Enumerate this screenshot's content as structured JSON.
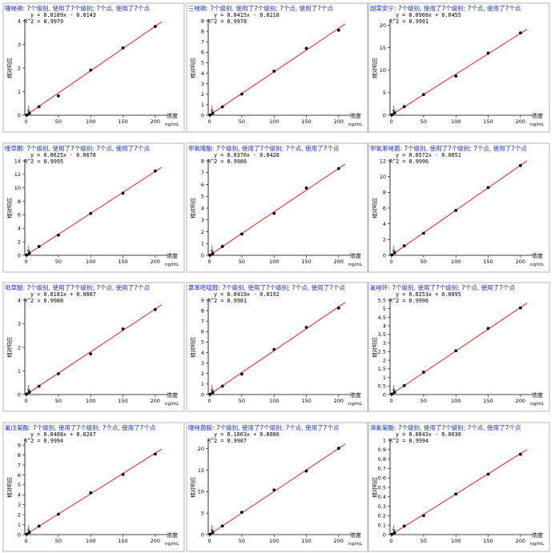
{
  "common": {
    "y_label": "相对响应",
    "x_label": "浓度",
    "x_unit": "ng/mL",
    "x_ticks": [
      0,
      50,
      100,
      150,
      200
    ],
    "point_x": [
      1,
      5,
      20,
      50,
      100,
      150,
      200
    ],
    "line_color": "#e8332f",
    "title_color": "#1a2fcc"
  },
  "chart_data": [
    {
      "type": "scatter",
      "title": "噻唑磷: 7个级别, 使用了7个级别; 7个点, 使用了7个点",
      "equation": "y = 0.0189x - 0.0143",
      "r2": "R^2 = 0.9979",
      "slope": 0.0189,
      "intercept": -0.0143,
      "ylim": [
        0,
        4
      ],
      "yticks": [
        0,
        1,
        2,
        3,
        4
      ],
      "x": [
        1,
        5,
        20,
        50,
        100,
        150,
        200
      ],
      "y": [
        0.01,
        0.08,
        0.36,
        0.82,
        1.91,
        2.85,
        3.76
      ]
    },
    {
      "type": "scatter",
      "title": "三唑磷: 7个级别, 使用了7个级别; 7个点, 使用了7个点",
      "equation": "y = 0.0415x - 0.0218",
      "r2": "R^2 = 0.9978",
      "slope": 0.0415,
      "intercept": -0.0218,
      "ylim": [
        0,
        9
      ],
      "yticks": [
        0,
        1,
        2,
        3,
        4,
        5,
        6,
        7,
        8,
        9
      ],
      "x": [
        1,
        5,
        20,
        50,
        100,
        150,
        200
      ],
      "y": [
        0.03,
        0.19,
        0.8,
        2.02,
        4.2,
        6.38,
        8.1
      ]
    },
    {
      "type": "scatter",
      "title": "甜菜安宁: 7个级别, 使用了7个级别; 7个点, 使用了7个点",
      "equation": "y = 0.0908x + 0.0455",
      "r2": "R^2 = 0.9991",
      "slope": 0.0908,
      "intercept": 0.0455,
      "ylim": [
        0,
        21
      ],
      "yticks": [
        0,
        5,
        10,
        15,
        20
      ],
      "x": [
        1,
        5,
        20,
        50,
        100,
        150,
        200
      ],
      "y": [
        0.1,
        0.5,
        1.9,
        4.6,
        8.7,
        13.8,
        18.3
      ]
    },
    {
      "type": "scatter",
      "title": "喹草酮: 7个级别, 使用了7个级别; 7个点, 使用了7个点",
      "equation": "y = 0.0625x - 0.0678",
      "r2": "R^2 = 0.9995",
      "slope": 0.0625,
      "intercept": -0.0678,
      "ylim": [
        0,
        14
      ],
      "yticks": [
        0,
        2,
        4,
        6,
        8,
        10,
        12,
        14
      ],
      "x": [
        1,
        5,
        20,
        50,
        100,
        150,
        200
      ],
      "y": [
        0.05,
        0.3,
        1.3,
        3.0,
        6.2,
        9.2,
        12.5
      ]
    },
    {
      "type": "scatter",
      "title": "甲氧隆酯: 7个级别, 使用了7个级别; 7个点, 使用了7个点",
      "equation": "y = 0.0370x - 0.0428",
      "r2": "R^2 = 0.9986",
      "slope": 0.037,
      "intercept": -0.0428,
      "ylim": [
        0,
        8
      ],
      "yticks": [
        0,
        1,
        2,
        3,
        4,
        5,
        6,
        7,
        8
      ],
      "x": [
        1,
        5,
        20,
        50,
        100,
        150,
        200
      ],
      "y": [
        0.01,
        0.15,
        0.75,
        1.8,
        3.55,
        5.7,
        7.35
      ]
    },
    {
      "type": "scatter",
      "title": "甲氧苯唑菌: 7个级别, 使用了7个级别; 7个点, 使用了7个点",
      "equation": "y = 0.0572x - 0.0051",
      "r2": "R^2 = 0.9996",
      "slope": 0.0572,
      "intercept": -0.0051,
      "ylim": [
        0,
        12
      ],
      "yticks": [
        0,
        2,
        4,
        6,
        8,
        10,
        12
      ],
      "x": [
        1,
        5,
        20,
        50,
        100,
        150,
        200
      ],
      "y": [
        0.05,
        0.3,
        1.2,
        2.8,
        5.7,
        8.6,
        11.4
      ]
    },
    {
      "type": "scatter",
      "title": "吡草醚: 7个级别, 使用了7个级别; 7个点, 使用了7个点",
      "equation": "y = 0.0181x + 0.0007",
      "r2": "R^2 = 0.9980",
      "slope": 0.0181,
      "intercept": 0.0007,
      "ylim": [
        0,
        4
      ],
      "yticks": [
        0,
        1,
        2,
        3,
        4
      ],
      "x": [
        1,
        5,
        20,
        50,
        100,
        150,
        200
      ],
      "y": [
        0.02,
        0.1,
        0.35,
        0.88,
        1.72,
        2.78,
        3.6
      ]
    },
    {
      "type": "scatter",
      "title": "氯苯嘧啶醇: 7个级别, 使用了7个级别; 7个点, 使用了7个点",
      "equation": "y = 0.0419x - 0.0192",
      "r2": "R^2 = 0.9981",
      "slope": 0.0419,
      "intercept": -0.0192,
      "ylim": [
        0,
        9
      ],
      "yticks": [
        0,
        1,
        2,
        3,
        4,
        5,
        6,
        7,
        8,
        9
      ],
      "x": [
        1,
        5,
        20,
        50,
        100,
        150,
        200
      ],
      "y": [
        0.03,
        0.2,
        0.8,
        1.95,
        4.3,
        6.4,
        8.25
      ]
    },
    {
      "type": "scatter",
      "title": "氟唑环: 7个级别, 使用了7个级别; 7个点, 使用了7个点",
      "equation": "y = 0.0253x + 0.0095",
      "r2": "R^2 = 0.9996",
      "slope": 0.0253,
      "intercept": 0.0095,
      "ylim": [
        0,
        5.5
      ],
      "yticks": [
        0,
        0.5,
        1,
        1.5,
        2,
        2.5,
        3,
        3.5,
        4,
        4.5,
        5,
        5.5
      ],
      "x": [
        1,
        5,
        20,
        50,
        100,
        150,
        200
      ],
      "y": [
        0.03,
        0.13,
        0.52,
        1.3,
        2.55,
        3.85,
        5.05
      ]
    },
    {
      "type": "scatter",
      "title": "氟戊菊酯: 7个级别, 使用了7个级别; 7个点, 使用了7个点",
      "equation": "y = 0.0408x + 0.0267",
      "r2": "R^2 = 0.9994",
      "slope": 0.0408,
      "intercept": 0.0267,
      "ylim": [
        0,
        9.5
      ],
      "yticks": [
        0,
        1,
        2,
        3,
        4,
        5,
        6,
        7,
        8,
        9
      ],
      "x": [
        1,
        5,
        20,
        50,
        100,
        150,
        200
      ],
      "y": [
        0.05,
        0.22,
        0.85,
        2.05,
        4.2,
        6.05,
        8.1
      ]
    },
    {
      "type": "scatter",
      "title": "噻唑菌胺: 7个级别, 使用了7个级别; 7个点, 使用了7个点",
      "equation": "y = 0.1003x + 0.0086",
      "r2": "R^2 = 0.9987",
      "slope": 0.1003,
      "intercept": 0.0086,
      "ylim": [
        0,
        22
      ],
      "yticks": [
        0,
        5,
        10,
        15,
        20
      ],
      "x": [
        1,
        5,
        20,
        50,
        100,
        150,
        200
      ],
      "y": [
        0.1,
        0.5,
        2.0,
        5.2,
        10.4,
        14.8,
        20.1
      ]
    },
    {
      "type": "scatter",
      "title": "溴氰菊酯: 7个级别, 使用了7个级别; 7个点, 使用了7个点",
      "equation": "y = 0.0043x - 0.0030",
      "r2": "R^2 = 0.9994",
      "slope": 0.0043,
      "intercept": -0.003,
      "ylim": [
        0,
        1.0
      ],
      "yticks": [
        0,
        0.1,
        0.2,
        0.3,
        0.4,
        0.5,
        0.6,
        0.7,
        0.8,
        0.9,
        1.0
      ],
      "x": [
        1,
        5,
        20,
        50,
        100,
        150,
        200
      ],
      "y": [
        0.003,
        0.02,
        0.09,
        0.2,
        0.43,
        0.64,
        0.85
      ]
    }
  ]
}
